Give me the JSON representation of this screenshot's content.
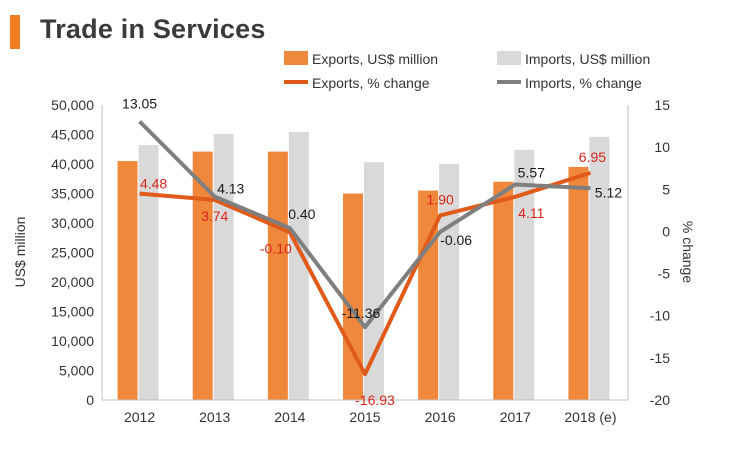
{
  "title": "Trade in Services",
  "colors": {
    "accent": "#f47d21",
    "exports_bar": "#f0883c",
    "imports_bar": "#d9d9d9",
    "exports_line": "#e05a1a",
    "imports_line": "#7f7f7f",
    "exports_label": "#d9261c",
    "imports_label": "#1a1a1a",
    "axis": "#333333"
  },
  "chart_data": {
    "type": "bar+line",
    "categories": [
      "2012",
      "2013",
      "2014",
      "2015",
      "2016",
      "2017",
      "2018 (e)"
    ],
    "series": [
      {
        "name": "Exports, US$ million",
        "kind": "bar",
        "axis": "left",
        "values": [
          40500,
          42100,
          42100,
          35000,
          35500,
          37000,
          39500
        ]
      },
      {
        "name": "Imports, US$ million",
        "kind": "bar",
        "axis": "left",
        "values": [
          43200,
          45100,
          45400,
          40300,
          40000,
          42400,
          44600
        ]
      },
      {
        "name": "Exports, % change",
        "kind": "line",
        "axis": "right",
        "values": [
          4.48,
          3.74,
          -0.1,
          -16.93,
          1.9,
          4.11,
          6.95
        ],
        "labels": [
          "4.48",
          "3.74",
          "-0.10",
          "-16.93",
          "1.90",
          "4.11",
          "6.95"
        ]
      },
      {
        "name": "Imports, % change",
        "kind": "line",
        "axis": "right",
        "values": [
          13.05,
          4.13,
          0.4,
          -11.36,
          -0.06,
          5.57,
          5.12
        ],
        "labels": [
          "13.05",
          "4.13",
          "0.40",
          "-11.36",
          "-0.06",
          "5.57",
          "5.12"
        ]
      }
    ],
    "left_axis": {
      "label": "US$ million",
      "min": 0,
      "max": 50000,
      "step": 5000,
      "ticks": [
        "0",
        "5,000",
        "10,000",
        "15,000",
        "20,000",
        "25,000",
        "30,000",
        "35,000",
        "40,000",
        "45,000",
        "50,000"
      ]
    },
    "right_axis": {
      "label": "% change",
      "min": -20,
      "max": 15,
      "step": 5,
      "ticks": [
        "-20",
        "-15",
        "-10",
        "-5",
        "0",
        "5",
        "10",
        "15"
      ]
    },
    "legend": [
      "Exports, US$ million",
      "Imports, US$ million",
      "Exports, % change",
      "Imports, % change"
    ],
    "grid": false
  }
}
